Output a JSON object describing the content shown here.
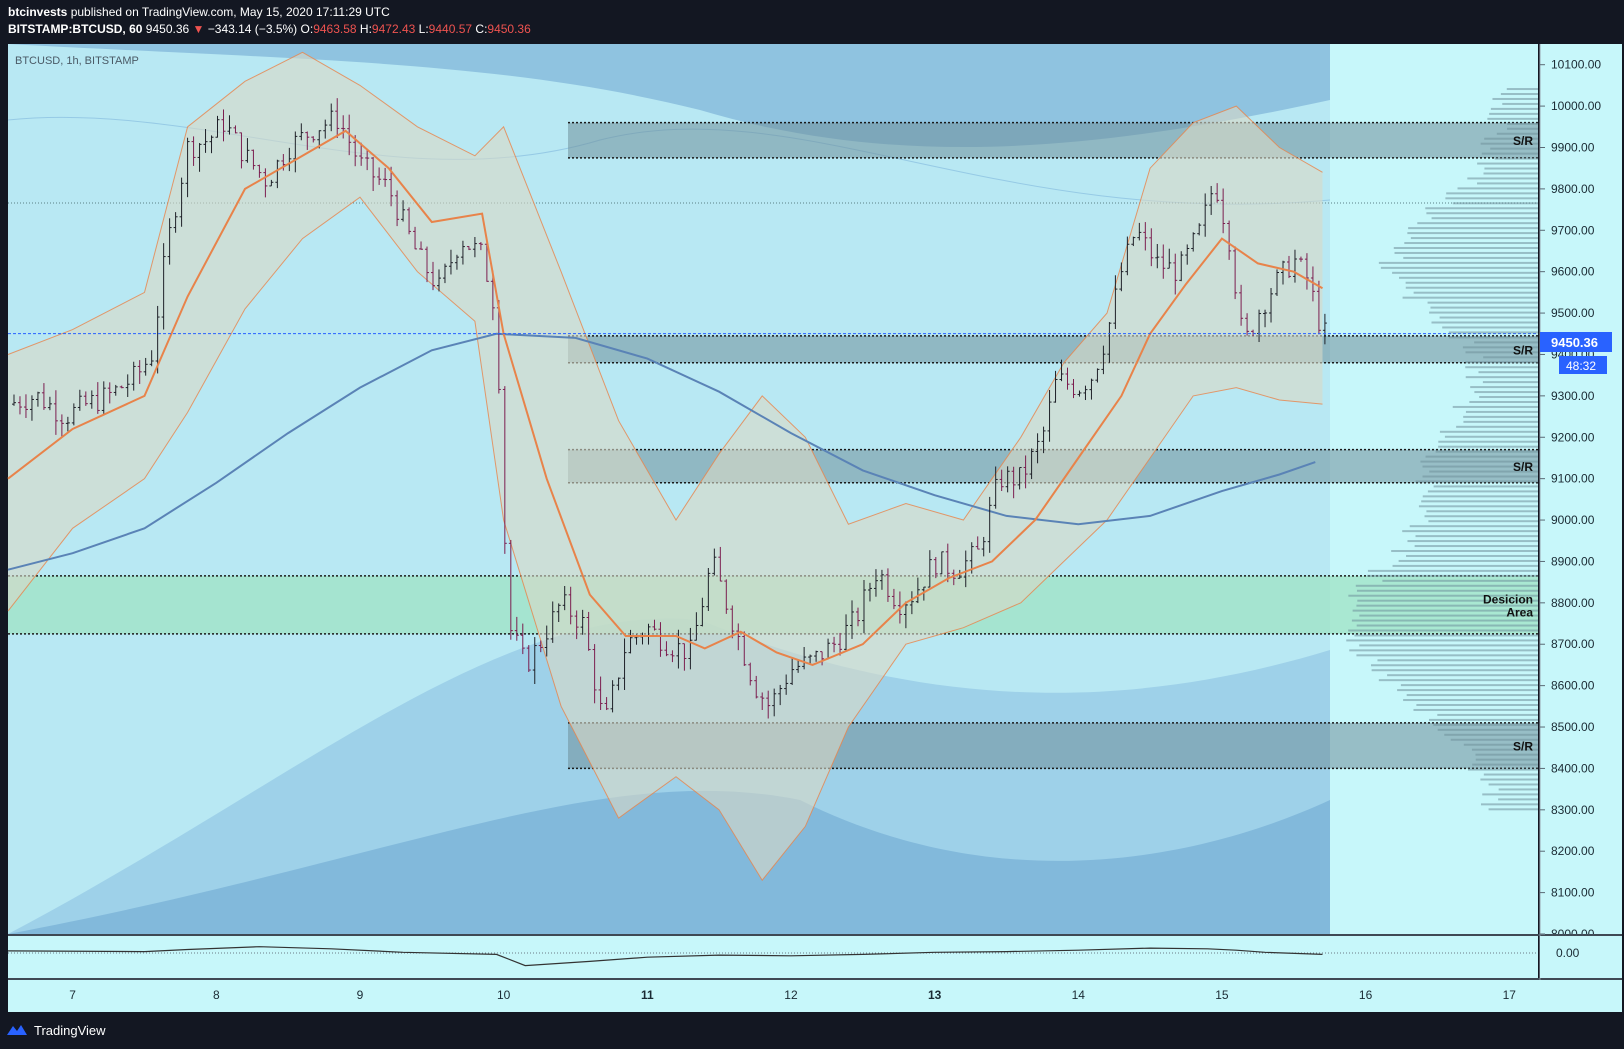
{
  "header": {
    "author": "btcinvests",
    "published_text": "published on TradingView.com, May 15, 2020 17:11:29 UTC",
    "symbol_interval": "BITSTAMP:BTCUSD, 60",
    "last": "9450.36",
    "change_arrow": "▼",
    "change": "−343.14 (−3.5%)",
    "o_label": "O:",
    "o_value": "9463.58",
    "h_label": "H:",
    "h_value": "9472.43",
    "l_label": "L:",
    "l_value": "9440.57",
    "c_label": "C:",
    "c_value": "9450.36"
  },
  "pane_title": "BTCUSD, 1h, BITSTAMP",
  "price_tag": {
    "value": "9450.36",
    "countdown": "48:32",
    "color": "#2962ff"
  },
  "oscillator_tick": "0.00",
  "footer": {
    "logo_icon": "tradingview-logo-icon",
    "brand": "TradingView"
  },
  "colors": {
    "background": "#c7f7fa",
    "candle_up": "#1e2028",
    "candle_down": "#7b1d4f",
    "ema": "#e8834a",
    "sma": "#5a83b6",
    "last_price_line": "#2962ff",
    "decision_zone": "#9fe3c4",
    "sr_zone": "#6f8f9a"
  },
  "zones": [
    {
      "label": "S/R",
      "top": 9960,
      "bottom": 9875
    },
    {
      "label": "S/R",
      "top": 9445,
      "bottom": 9380
    },
    {
      "label": "S/R",
      "top": 9170,
      "bottom": 9090
    },
    {
      "label": "Desicion\nArea",
      "top": 8865,
      "bottom": 8725,
      "type": "decision"
    },
    {
      "label": "S/R",
      "top": 8510,
      "bottom": 8400
    }
  ],
  "chart_data": {
    "type": "candlestick",
    "title": "BTCUSD, 1h, BITSTAMP",
    "x_ticks": [
      "7",
      "8",
      "9",
      "10",
      "11",
      "12",
      "13",
      "14",
      "15",
      "16",
      "17"
    ],
    "y_ticks": [
      "8000.00",
      "8100.00",
      "8200.00",
      "8300.00",
      "8400.00",
      "8500.00",
      "8600.00",
      "8700.00",
      "8800.00",
      "8900.00",
      "9000.00",
      "9100.00",
      "9200.00",
      "9300.00",
      "9400.00",
      "9500.00",
      "9600.00",
      "9700.00",
      "9800.00",
      "9900.00",
      "10000.00",
      "10100.00"
    ],
    "ylim": [
      8000,
      10150
    ],
    "xlim": [
      6.55,
      17.2
    ],
    "close_path": [
      [
        6.55,
        9280
      ],
      [
        6.75,
        9300
      ],
      [
        6.95,
        9250
      ],
      [
        7.1,
        9280
      ],
      [
        7.25,
        9300
      ],
      [
        7.45,
        9350
      ],
      [
        7.55,
        9400
      ],
      [
        7.65,
        9650
      ],
      [
        7.8,
        9900
      ],
      [
        7.95,
        9920
      ],
      [
        8.05,
        9960
      ],
      [
        8.2,
        9880
      ],
      [
        8.35,
        9820
      ],
      [
        8.5,
        9900
      ],
      [
        8.7,
        9950
      ],
      [
        8.85,
        9970
      ],
      [
        9.0,
        9860
      ],
      [
        9.2,
        9800
      ],
      [
        9.4,
        9640
      ],
      [
        9.55,
        9560
      ],
      [
        9.7,
        9680
      ],
      [
        9.85,
        9640
      ],
      [
        9.95,
        9500
      ],
      [
        10.03,
        8750
      ],
      [
        10.15,
        8650
      ],
      [
        10.25,
        8700
      ],
      [
        10.4,
        8800
      ],
      [
        10.55,
        8750
      ],
      [
        10.7,
        8500
      ],
      [
        10.85,
        8700
      ],
      [
        11.0,
        8740
      ],
      [
        11.15,
        8700
      ],
      [
        11.3,
        8680
      ],
      [
        11.45,
        8900
      ],
      [
        11.6,
        8750
      ],
      [
        11.75,
        8600
      ],
      [
        11.85,
        8550
      ],
      [
        12.0,
        8640
      ],
      [
        12.15,
        8660
      ],
      [
        12.3,
        8700
      ],
      [
        12.45,
        8760
      ],
      [
        12.6,
        8880
      ],
      [
        12.75,
        8800
      ],
      [
        12.85,
        8820
      ],
      [
        13.0,
        8900
      ],
      [
        13.15,
        8880
      ],
      [
        13.3,
        8920
      ],
      [
        13.45,
        9100
      ],
      [
        13.6,
        9100
      ],
      [
        13.75,
        9200
      ],
      [
        13.85,
        9340
      ],
      [
        14.0,
        9320
      ],
      [
        14.1,
        9350
      ],
      [
        14.2,
        9450
      ],
      [
        14.3,
        9600
      ],
      [
        14.4,
        9700
      ],
      [
        14.55,
        9620
      ],
      [
        14.7,
        9600
      ],
      [
        14.85,
        9700
      ],
      [
        14.95,
        9820
      ],
      [
        15.05,
        9680
      ],
      [
        15.15,
        9420
      ],
      [
        15.25,
        9500
      ],
      [
        15.35,
        9560
      ],
      [
        15.5,
        9630
      ],
      [
        15.6,
        9580
      ],
      [
        15.7,
        9450
      ]
    ],
    "sma_path": [
      [
        6.55,
        8880
      ],
      [
        7.0,
        8920
      ],
      [
        7.5,
        8980
      ],
      [
        8.0,
        9090
      ],
      [
        8.5,
        9210
      ],
      [
        9.0,
        9320
      ],
      [
        9.5,
        9410
      ],
      [
        9.95,
        9450
      ],
      [
        10.5,
        9440
      ],
      [
        11.0,
        9390
      ],
      [
        11.5,
        9310
      ],
      [
        12.0,
        9210
      ],
      [
        12.5,
        9120
      ],
      [
        13.0,
        9060
      ],
      [
        13.5,
        9010
      ],
      [
        14.0,
        8990
      ],
      [
        14.5,
        9010
      ],
      [
        15.0,
        9070
      ],
      [
        15.4,
        9110
      ],
      [
        15.65,
        9140
      ]
    ],
    "ema_path": [
      [
        6.55,
        9100
      ],
      [
        7.0,
        9220
      ],
      [
        7.5,
        9300
      ],
      [
        7.8,
        9540
      ],
      [
        8.2,
        9800
      ],
      [
        8.6,
        9880
      ],
      [
        8.9,
        9940
      ],
      [
        9.2,
        9850
      ],
      [
        9.5,
        9720
      ],
      [
        9.85,
        9740
      ],
      [
        10.0,
        9450
      ],
      [
        10.3,
        9100
      ],
      [
        10.6,
        8820
      ],
      [
        10.85,
        8720
      ],
      [
        11.2,
        8720
      ],
      [
        11.4,
        8690
      ],
      [
        11.65,
        8730
      ],
      [
        11.9,
        8680
      ],
      [
        12.15,
        8650
      ],
      [
        12.5,
        8700
      ],
      [
        12.8,
        8800
      ],
      [
        13.1,
        8860
      ],
      [
        13.4,
        8900
      ],
      [
        13.7,
        9000
      ],
      [
        14.0,
        9150
      ],
      [
        14.3,
        9300
      ],
      [
        14.5,
        9450
      ],
      [
        14.75,
        9570
      ],
      [
        15.0,
        9680
      ],
      [
        15.25,
        9620
      ],
      [
        15.5,
        9600
      ],
      [
        15.7,
        9560
      ]
    ],
    "bb_upper": [
      [
        6.55,
        9400
      ],
      [
        7.0,
        9460
      ],
      [
        7.5,
        9550
      ],
      [
        7.8,
        9950
      ],
      [
        8.2,
        10060
      ],
      [
        8.6,
        10130
      ],
      [
        9.0,
        10050
      ],
      [
        9.4,
        9950
      ],
      [
        9.8,
        9880
      ],
      [
        10.0,
        9950
      ],
      [
        10.4,
        9600
      ],
      [
        10.8,
        9240
      ],
      [
        11.2,
        9000
      ],
      [
        11.5,
        9160
      ],
      [
        11.8,
        9300
      ],
      [
        12.1,
        9200
      ],
      [
        12.4,
        8990
      ],
      [
        12.8,
        9040
      ],
      [
        13.2,
        9000
      ],
      [
        13.6,
        9200
      ],
      [
        13.9,
        9380
      ],
      [
        14.2,
        9500
      ],
      [
        14.5,
        9850
      ],
      [
        14.8,
        9960
      ],
      [
        15.1,
        10000
      ],
      [
        15.4,
        9900
      ],
      [
        15.7,
        9840
      ]
    ],
    "bb_lower": [
      [
        6.55,
        8780
      ],
      [
        7.0,
        8980
      ],
      [
        7.5,
        9100
      ],
      [
        7.8,
        9260
      ],
      [
        8.2,
        9510
      ],
      [
        8.6,
        9680
      ],
      [
        9.0,
        9780
      ],
      [
        9.4,
        9600
      ],
      [
        9.8,
        9480
      ],
      [
        10.0,
        9000
      ],
      [
        10.4,
        8550
      ],
      [
        10.8,
        8280
      ],
      [
        11.2,
        8380
      ],
      [
        11.5,
        8300
      ],
      [
        11.8,
        8130
      ],
      [
        12.1,
        8260
      ],
      [
        12.4,
        8500
      ],
      [
        12.8,
        8700
      ],
      [
        13.2,
        8740
      ],
      [
        13.6,
        8800
      ],
      [
        13.9,
        8900
      ],
      [
        14.2,
        9000
      ],
      [
        14.5,
        9150
      ],
      [
        14.8,
        9300
      ],
      [
        15.1,
        9320
      ],
      [
        15.4,
        9290
      ],
      [
        15.7,
        9280
      ]
    ],
    "oscillator_path": [
      [
        6.55,
        0.3
      ],
      [
        7.5,
        0.2
      ],
      [
        7.8,
        0.5
      ],
      [
        8.3,
        0.9
      ],
      [
        8.8,
        0.6
      ],
      [
        9.3,
        0.1
      ],
      [
        9.95,
        -0.2
      ],
      [
        10.15,
        -1.8
      ],
      [
        10.6,
        -1.2
      ],
      [
        11.0,
        -0.6
      ],
      [
        11.5,
        -0.3
      ],
      [
        12.0,
        -0.4
      ],
      [
        12.5,
        -0.2
      ],
      [
        13.0,
        0.1
      ],
      [
        13.5,
        0.2
      ],
      [
        14.0,
        0.4
      ],
      [
        14.5,
        0.7
      ],
      [
        14.9,
        0.6
      ],
      [
        15.1,
        0.4
      ],
      [
        15.3,
        0.1
      ],
      [
        15.7,
        -0.2
      ]
    ]
  }
}
